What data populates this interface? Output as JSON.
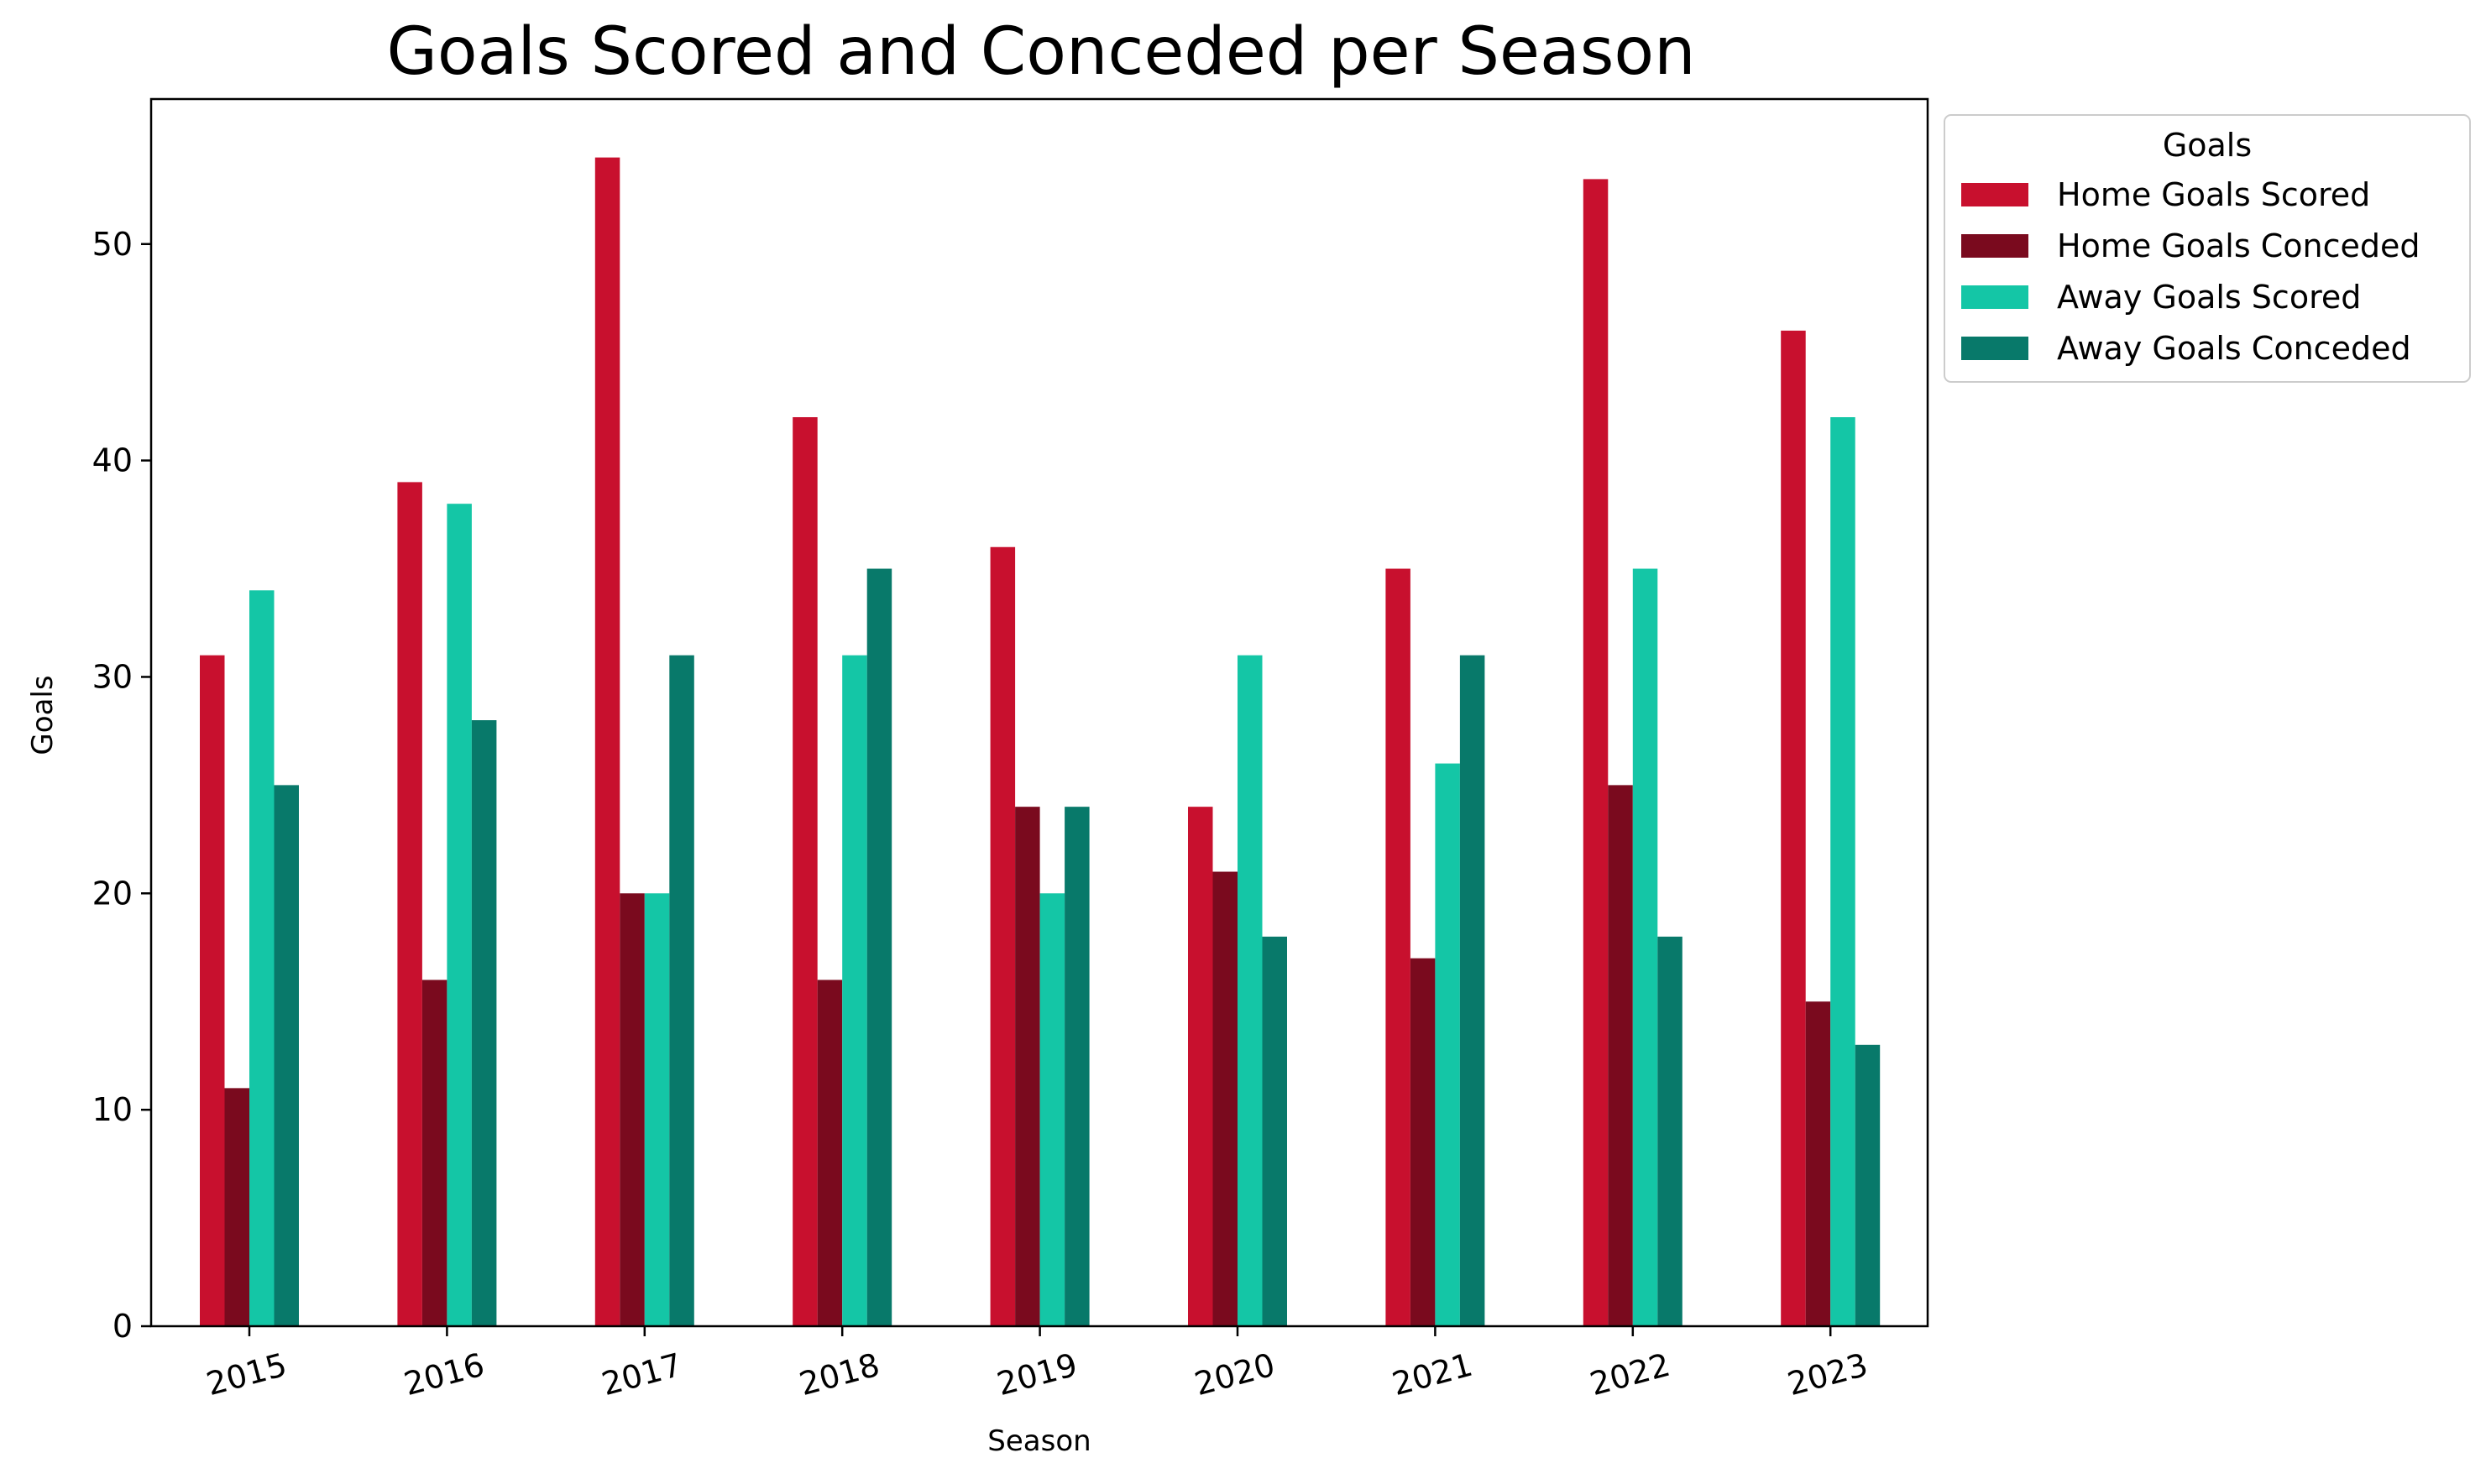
{
  "chart_data": {
    "type": "bar",
    "title": "Goals Scored and Conceded per Season",
    "xlabel": "Season",
    "ylabel": "Goals",
    "categories": [
      "2015",
      "2016",
      "2017",
      "2018",
      "2019",
      "2020",
      "2021",
      "2022",
      "2023"
    ],
    "ylim": [
      0,
      56.7
    ],
    "yticks": [
      0,
      10,
      20,
      30,
      40,
      50
    ],
    "grid": false,
    "legend": {
      "title": "Goals",
      "placement": "outside-top-right"
    },
    "series": [
      {
        "name": "Home Goals Scored",
        "color": "#c8102e",
        "values": [
          31,
          39,
          54,
          42,
          36,
          24,
          35,
          53,
          46
        ]
      },
      {
        "name": "Home Goals Conceded",
        "color": "#7a0a1e",
        "values": [
          11,
          16,
          20,
          16,
          24,
          21,
          17,
          25,
          15
        ]
      },
      {
        "name": "Away Goals Scored",
        "color": "#14c6a6",
        "values": [
          34,
          38,
          20,
          31,
          20,
          31,
          26,
          35,
          42
        ]
      },
      {
        "name": "Away Goals Conceded",
        "color": "#08796a",
        "values": [
          25,
          28,
          31,
          35,
          24,
          18,
          31,
          18,
          13
        ]
      }
    ]
  }
}
